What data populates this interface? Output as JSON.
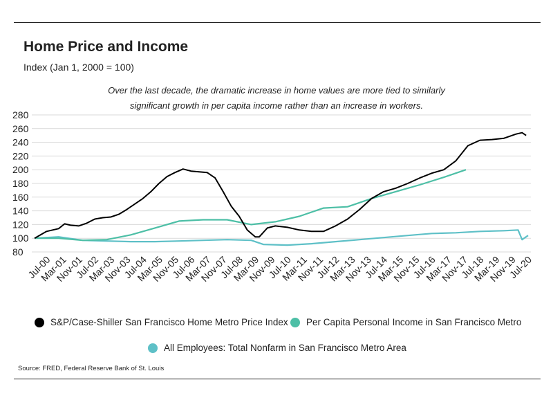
{
  "header": {
    "title": "Home Price and Income",
    "subtitle": "Index (Jan 1, 2000 = 100)"
  },
  "annotation": {
    "line1": "Over the last decade, the dramatic increase in home values  are more tied to similarly",
    "line2": "significant growth in per capita income rather than an increase in workers."
  },
  "source": "Source:  FRED, Federal Reserve Bank of St. Louis",
  "chart_data": {
    "type": "line",
    "ylim": [
      80,
      280
    ],
    "yticks": [
      80,
      100,
      120,
      140,
      160,
      180,
      200,
      220,
      240,
      260,
      280
    ],
    "grid": true,
    "legend_position": "bottom",
    "xticks": [
      "Jul-00",
      "Mar-01",
      "Nov-01",
      "Jul-02",
      "Mar-03",
      "Nov-03",
      "Jul-04",
      "Mar-05",
      "Nov-05",
      "Jul-06",
      "Mar-07",
      "Nov-07",
      "Jul-08",
      "Mar-09",
      "Nov-09",
      "Jul-10",
      "Mar-11",
      "Nov-11",
      "Jul-12",
      "Mar-13",
      "Nov-13",
      "Jul-14",
      "Mar-15",
      "Nov-15",
      "Jul-16",
      "Mar-17",
      "Nov-17",
      "Jul-18",
      "Mar-19",
      "Nov-19",
      "Jul-20"
    ],
    "series": [
      {
        "name": "S&P/Case-Shiller San Francisco Home Metro Price Index",
        "color": "#000000",
        "x": [
          "2000-01",
          "2000-07",
          "2001-01",
          "2001-04",
          "2001-07",
          "2001-11",
          "2002-03",
          "2002-07",
          "2002-11",
          "2003-03",
          "2003-07",
          "2003-11",
          "2004-03",
          "2004-07",
          "2004-11",
          "2005-03",
          "2005-07",
          "2005-11",
          "2006-03",
          "2006-07",
          "2006-11",
          "2007-03",
          "2007-07",
          "2007-11",
          "2008-03",
          "2008-07",
          "2008-11",
          "2009-03",
          "2009-05",
          "2009-09",
          "2010-01",
          "2010-07",
          "2011-01",
          "2011-07",
          "2012-01",
          "2012-07",
          "2013-01",
          "2013-07",
          "2014-01",
          "2014-07",
          "2015-01",
          "2015-07",
          "2016-01",
          "2016-07",
          "2017-01",
          "2017-07",
          "2018-01",
          "2018-07",
          "2019-01",
          "2019-07",
          "2020-01",
          "2020-04",
          "2020-06"
        ],
        "values": [
          100,
          110,
          114,
          121,
          119,
          118,
          122,
          128,
          130,
          131,
          135,
          142,
          150,
          158,
          168,
          180,
          190,
          196,
          201,
          198,
          197,
          196,
          188,
          168,
          147,
          132,
          112,
          102,
          102,
          115,
          118,
          116,
          112,
          110,
          110,
          118,
          128,
          142,
          158,
          168,
          173,
          180,
          188,
          195,
          200,
          213,
          235,
          243,
          244,
          246,
          252,
          254,
          250
        ]
      },
      {
        "name": "Per Capita Personal Income in San Francisco Metro",
        "color": "#4dbfa6",
        "x": [
          "2000-01",
          "2001-01",
          "2002-01",
          "2003-01",
          "2004-01",
          "2005-01",
          "2006-01",
          "2007-01",
          "2008-01",
          "2009-01",
          "2010-01",
          "2011-01",
          "2012-01",
          "2013-01",
          "2014-01",
          "2015-01",
          "2016-01",
          "2017-01",
          "2017-12"
        ],
        "values": [
          100,
          100,
          97,
          98,
          105,
          115,
          125,
          127,
          127,
          120,
          124,
          132,
          144,
          146,
          158,
          168,
          178,
          189,
          200
        ]
      },
      {
        "name": "All Employees: Total Nonfarm in San Francisco Metro Area",
        "color": "#5ec0c7",
        "x": [
          "2000-01",
          "2001-01",
          "2002-01",
          "2003-01",
          "2004-01",
          "2005-01",
          "2006-01",
          "2007-01",
          "2008-01",
          "2009-01",
          "2009-07",
          "2010-07",
          "2011-07",
          "2012-07",
          "2013-07",
          "2014-07",
          "2015-07",
          "2016-07",
          "2017-07",
          "2018-07",
          "2019-07",
          "2020-02",
          "2020-04",
          "2020-07"
        ],
        "values": [
          100,
          102,
          97,
          96,
          95,
          95,
          96,
          97,
          98,
          97,
          91,
          90,
          92,
          95,
          98,
          101,
          104,
          107,
          108,
          110,
          111,
          112,
          98,
          104
        ]
      }
    ]
  }
}
